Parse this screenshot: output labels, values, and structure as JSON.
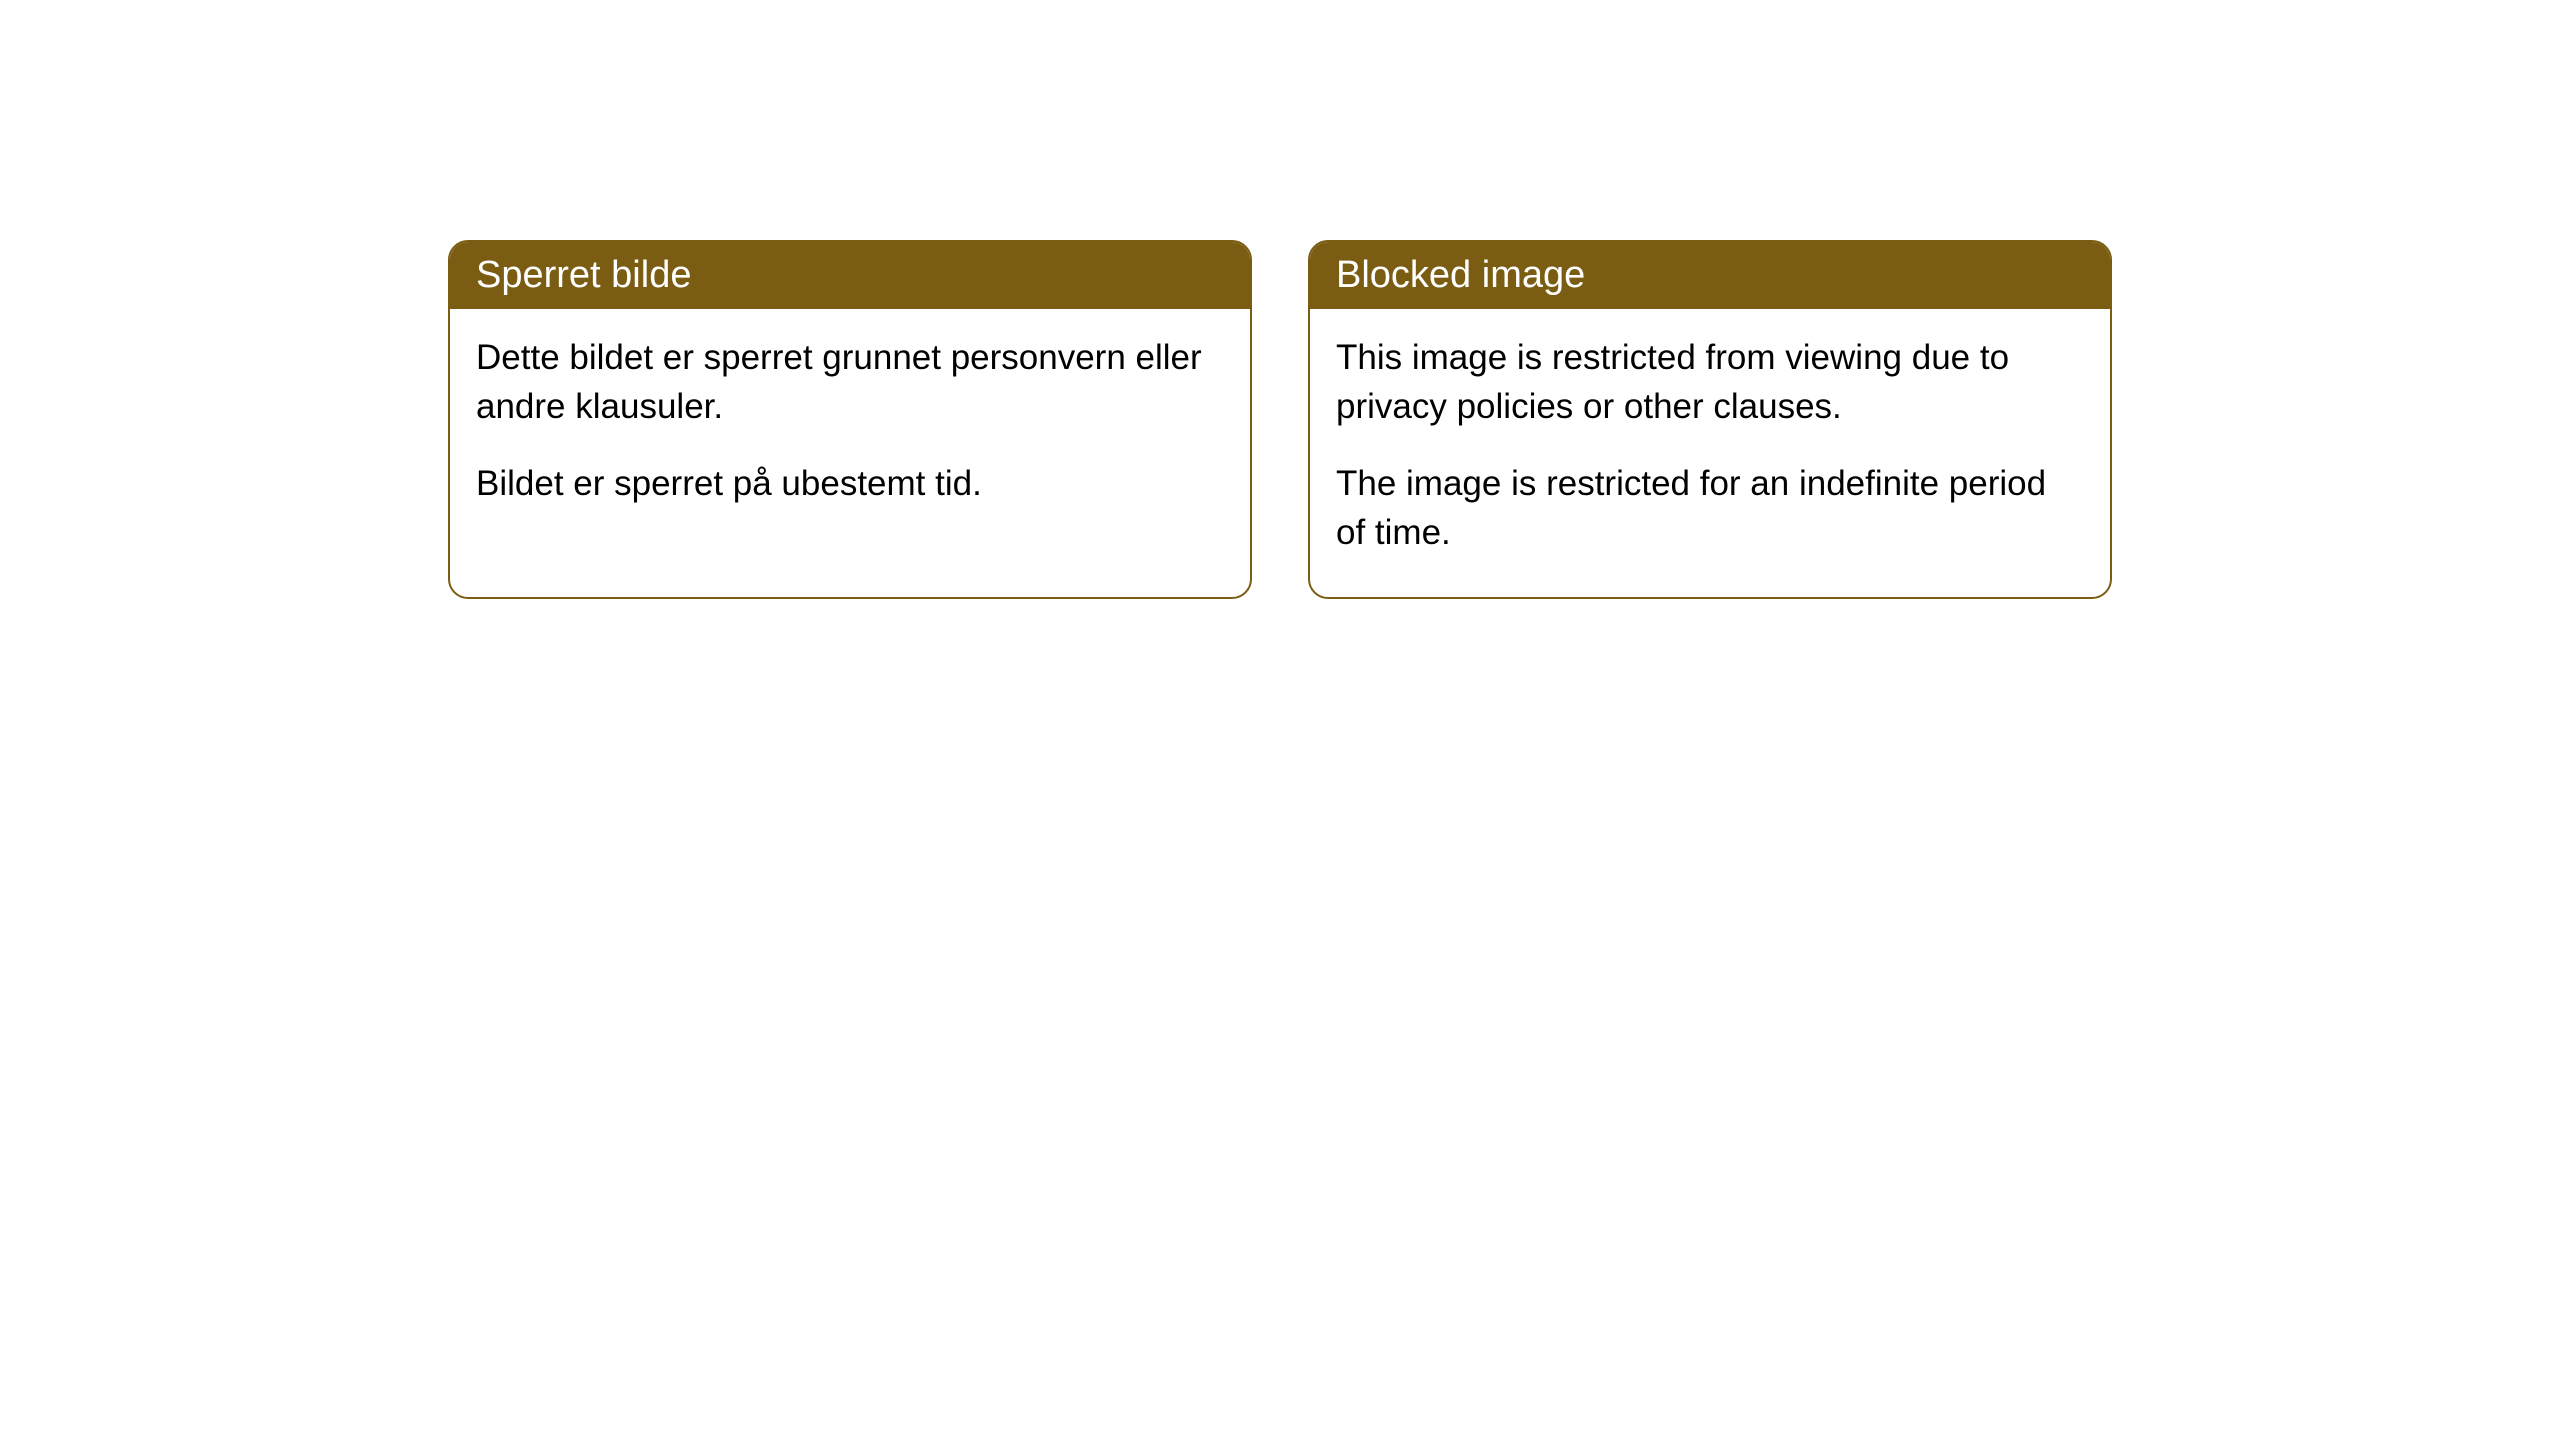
{
  "styling": {
    "header_bg_color": "#7a5d13",
    "header_text_color": "#ffffff",
    "border_color": "#7a5d13",
    "body_bg_color": "#ffffff",
    "body_text_color": "#000000",
    "border_radius": 20,
    "header_fontsize": 38,
    "body_fontsize": 35
  },
  "cards": [
    {
      "title": "Sperret bilde",
      "paragraph1": "Dette bildet er sperret grunnet personvern eller andre klausuler.",
      "paragraph2": "Bildet er sperret på ubestemt tid."
    },
    {
      "title": "Blocked image",
      "paragraph1": "This image is restricted from viewing due to privacy policies or other clauses.",
      "paragraph2": "The image is restricted for an indefinite period of time."
    }
  ]
}
